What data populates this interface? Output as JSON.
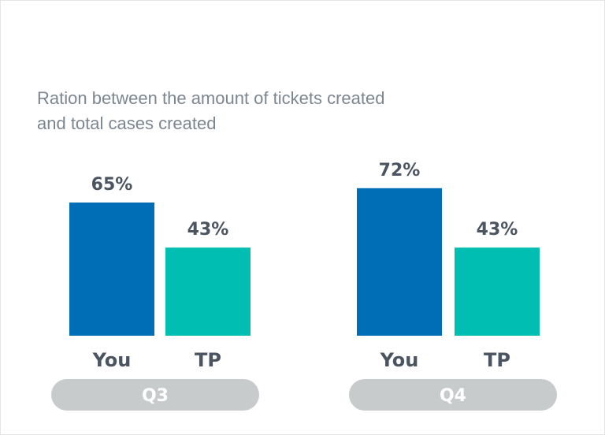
{
  "chart_data": {
    "type": "bar",
    "title": "",
    "subtitle": "Ration between the amount of tickets created and total cases created",
    "unit": "%",
    "groups": [
      {
        "name": "Q3",
        "bars": [
          {
            "label": "You",
            "value": 65
          },
          {
            "label": "TP",
            "value": 43
          }
        ]
      },
      {
        "name": "Q4",
        "bars": [
          {
            "label": "You",
            "value": 72
          },
          {
            "label": "TP",
            "value": 43
          }
        ]
      }
    ],
    "ylim": [
      0,
      100
    ],
    "grid": false,
    "legend": "none"
  },
  "colors": {
    "You": "#006db7",
    "TP": "#00bfb2",
    "pill": "#c8cbcc"
  }
}
